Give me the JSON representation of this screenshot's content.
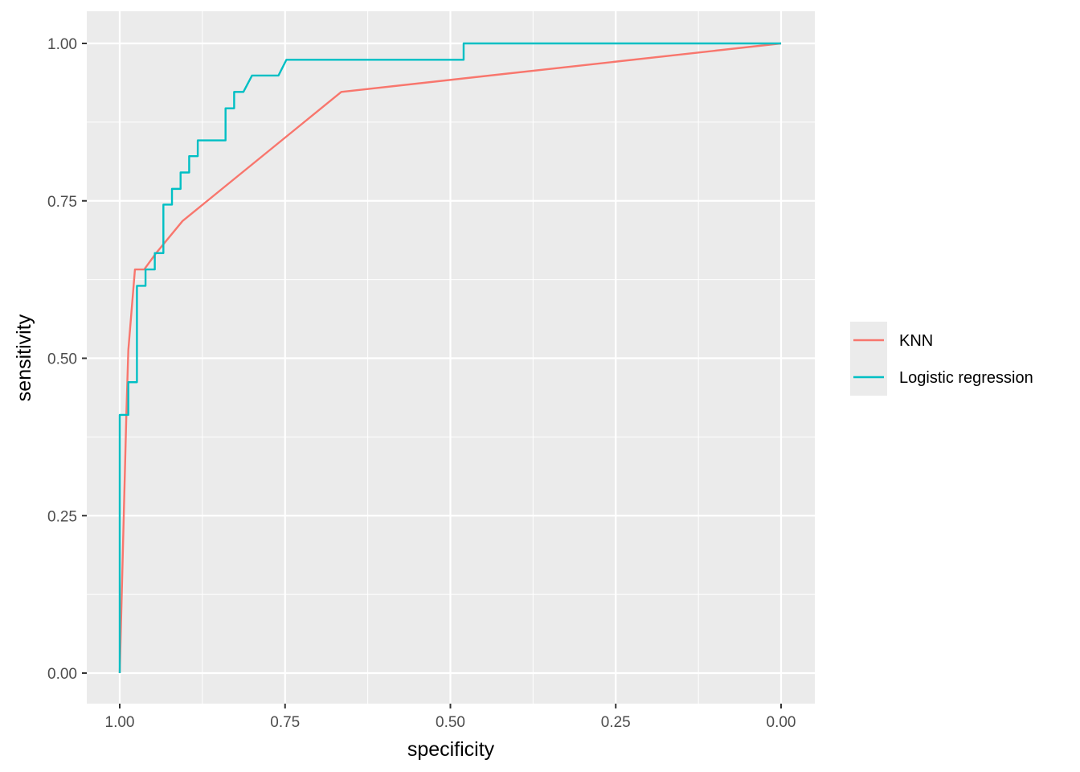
{
  "chart_data": {
    "type": "line",
    "title": "",
    "xlabel": "specificity",
    "ylabel": "sensitivity",
    "xlim": [
      1.0,
      0.0
    ],
    "ylim": [
      0.0,
      1.0
    ],
    "x_reversed": true,
    "grid": true,
    "legend_position": "right",
    "x_ticks": [
      {
        "value": 1.0,
        "label": "1.00"
      },
      {
        "value": 0.75,
        "label": "0.75"
      },
      {
        "value": 0.5,
        "label": "0.50"
      },
      {
        "value": 0.25,
        "label": "0.25"
      },
      {
        "value": 0.0,
        "label": "0.00"
      }
    ],
    "y_ticks": [
      {
        "value": 0.0,
        "label": "0.00"
      },
      {
        "value": 0.25,
        "label": "0.25"
      },
      {
        "value": 0.5,
        "label": "0.50"
      },
      {
        "value": 0.75,
        "label": "0.75"
      },
      {
        "value": 1.0,
        "label": "1.00"
      }
    ],
    "series": [
      {
        "name": "KNN",
        "color": "#F8766D",
        "points": [
          [
            1.0,
            0.0
          ],
          [
            0.99,
            0.41
          ],
          [
            0.987,
            0.513
          ],
          [
            0.977,
            0.641
          ],
          [
            0.963,
            0.641
          ],
          [
            0.945,
            0.667
          ],
          [
            0.905,
            0.718
          ],
          [
            0.665,
            0.923
          ],
          [
            0.0,
            1.0
          ]
        ]
      },
      {
        "name": "Logistic regression",
        "color": "#00BFC4",
        "points": [
          [
            1.0,
            0.0
          ],
          [
            1.0,
            0.41
          ],
          [
            0.987,
            0.41
          ],
          [
            0.987,
            0.462
          ],
          [
            0.974,
            0.462
          ],
          [
            0.974,
            0.615
          ],
          [
            0.961,
            0.615
          ],
          [
            0.961,
            0.641
          ],
          [
            0.947,
            0.641
          ],
          [
            0.947,
            0.667
          ],
          [
            0.934,
            0.667
          ],
          [
            0.934,
            0.744
          ],
          [
            0.921,
            0.744
          ],
          [
            0.921,
            0.769
          ],
          [
            0.908,
            0.769
          ],
          [
            0.908,
            0.795
          ],
          [
            0.895,
            0.795
          ],
          [
            0.895,
            0.821
          ],
          [
            0.882,
            0.821
          ],
          [
            0.882,
            0.846
          ],
          [
            0.84,
            0.846
          ],
          [
            0.84,
            0.897
          ],
          [
            0.827,
            0.897
          ],
          [
            0.827,
            0.923
          ],
          [
            0.813,
            0.923
          ],
          [
            0.8,
            0.949
          ],
          [
            0.76,
            0.949
          ],
          [
            0.748,
            0.974
          ],
          [
            0.48,
            0.974
          ],
          [
            0.48,
            1.0
          ],
          [
            0.0,
            1.0
          ]
        ]
      }
    ]
  }
}
